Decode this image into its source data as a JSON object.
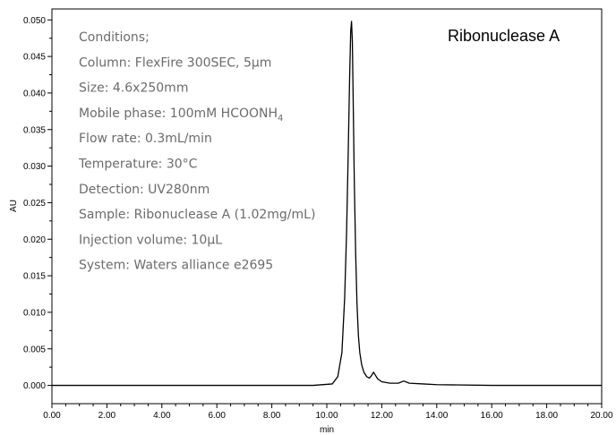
{
  "chart_data": {
    "type": "line",
    "title": "Ribonuclease A",
    "xlabel": "min",
    "ylabel": "AU",
    "xlim": [
      0,
      20
    ],
    "ylim": [
      -0.0025,
      0.0515
    ],
    "x_ticks": [
      "0.00",
      "2.00",
      "4.00",
      "6.00",
      "8.00",
      "10.00",
      "12.00",
      "14.00",
      "16.00",
      "18.00",
      "20.00"
    ],
    "y_ticks": [
      "0.000",
      "0.005",
      "0.010",
      "0.015",
      "0.020",
      "0.025",
      "0.030",
      "0.035",
      "0.040",
      "0.045",
      "0.050"
    ],
    "grid": false,
    "legend": "none",
    "line_color": "#000000",
    "annotations": [
      "Conditions;",
      "Column: FlexFire 300SEC, 5µm",
      "Size: 4.6x250mm",
      "Mobile phase: 100mM HCOONH4",
      "Flow rate: 0.3mL/min",
      "Temperature: 30°C",
      "Detection: UV280nm",
      "Sample: Ribonuclease A (1.02mg/mL)",
      "Injection volume: 10µL",
      "System: Waters alliance e2695"
    ],
    "series": [
      {
        "x": [
          0.0,
          2.0,
          4.0,
          6.0,
          8.0,
          9.5,
          10.2,
          10.4,
          10.55,
          10.65,
          10.72,
          10.78,
          10.83,
          10.87,
          10.9,
          10.93,
          10.96,
          11.0,
          11.05,
          11.1,
          11.15,
          11.2,
          11.27,
          11.35,
          11.45,
          11.55,
          11.62,
          11.7,
          11.75,
          11.85,
          12.0,
          12.3,
          12.6,
          12.8,
          13.0,
          13.5,
          14.0,
          16.0,
          18.0,
          20.0
        ],
        "y": [
          0.0,
          0.0,
          0.0,
          0.0,
          0.0,
          0.0,
          0.0002,
          0.0012,
          0.0045,
          0.012,
          0.021,
          0.032,
          0.042,
          0.0485,
          0.0498,
          0.047,
          0.039,
          0.028,
          0.018,
          0.011,
          0.0068,
          0.0045,
          0.0028,
          0.0018,
          0.0012,
          0.001,
          0.0013,
          0.0018,
          0.0015,
          0.0009,
          0.0005,
          0.0003,
          0.0003,
          0.0006,
          0.0003,
          0.0002,
          0.0001,
          0.0,
          0.0,
          0.0
        ]
      }
    ]
  }
}
